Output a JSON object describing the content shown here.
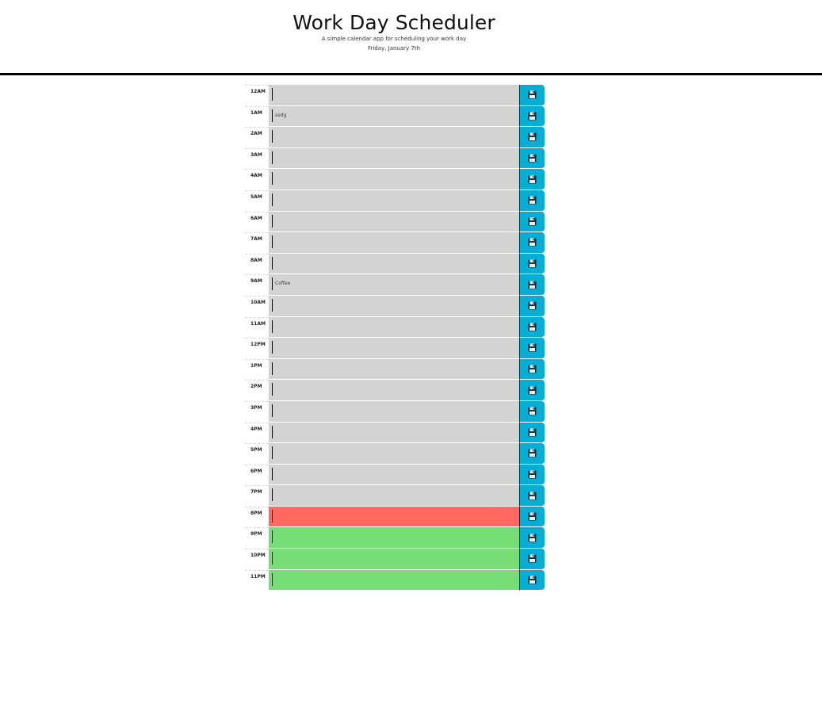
{
  "header": {
    "title": "Work Day Scheduler",
    "subtitle": "A simple calendar app for scheduling your work day",
    "current_day": "Friday, January 7th"
  },
  "save_icon": "floppy-disk-icon",
  "colors": {
    "past": "#d3d3d3",
    "present": "#ff6961",
    "future": "#77dd77",
    "save": "#06aed5"
  },
  "time_blocks": [
    {
      "hour": "12AM",
      "text": "",
      "state": "past"
    },
    {
      "hour": "1AM",
      "text": "asdg",
      "state": "past"
    },
    {
      "hour": "2AM",
      "text": "",
      "state": "past"
    },
    {
      "hour": "3AM",
      "text": "",
      "state": "past"
    },
    {
      "hour": "4AM",
      "text": "",
      "state": "past"
    },
    {
      "hour": "5AM",
      "text": "",
      "state": "past"
    },
    {
      "hour": "6AM",
      "text": "",
      "state": "past"
    },
    {
      "hour": "7AM",
      "text": "",
      "state": "past"
    },
    {
      "hour": "8AM",
      "text": "",
      "state": "past"
    },
    {
      "hour": "9AM",
      "text": "Coffee",
      "state": "past"
    },
    {
      "hour": "10AM",
      "text": "",
      "state": "past"
    },
    {
      "hour": "11AM",
      "text": "",
      "state": "past"
    },
    {
      "hour": "12PM",
      "text": "",
      "state": "past"
    },
    {
      "hour": "1PM",
      "text": "",
      "state": "past"
    },
    {
      "hour": "2PM",
      "text": "",
      "state": "past"
    },
    {
      "hour": "3PM",
      "text": "",
      "state": "past"
    },
    {
      "hour": "4PM",
      "text": "",
      "state": "past"
    },
    {
      "hour": "5PM",
      "text": "",
      "state": "past"
    },
    {
      "hour": "6PM",
      "text": "",
      "state": "past"
    },
    {
      "hour": "7PM",
      "text": "",
      "state": "past"
    },
    {
      "hour": "8PM",
      "text": "",
      "state": "present"
    },
    {
      "hour": "9PM",
      "text": "",
      "state": "future"
    },
    {
      "hour": "10PM",
      "text": "",
      "state": "future"
    },
    {
      "hour": "11PM",
      "text": "",
      "state": "future"
    }
  ]
}
